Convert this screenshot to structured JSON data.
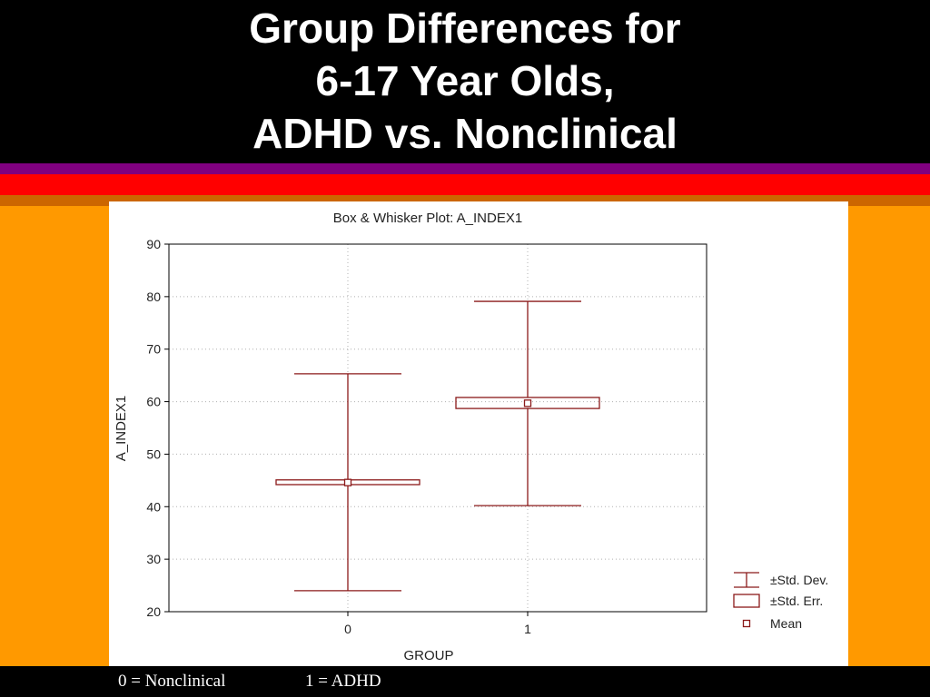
{
  "slide": {
    "title_lines": [
      "Group Differences for",
      "6-17 Year Olds,",
      "ADHD vs. Nonclinical"
    ],
    "footnotes": [
      "0 = Nonclinical",
      "1 = ADHD"
    ]
  },
  "colors": {
    "background": "#ff9900",
    "band": "#000000",
    "stripes": [
      "#800080",
      "#ff0000",
      "#ff0000",
      "#cc6600"
    ],
    "plot_stroke": "#8b1a1a",
    "grid": "#b0b0b0"
  },
  "chart_data": {
    "type": "box",
    "title": "Box & Whisker Plot: A_INDEX1",
    "xlabel": "GROUP",
    "ylabel": "A_INDEX1",
    "ylim": [
      20,
      90
    ],
    "yticks": [
      20,
      30,
      40,
      50,
      60,
      70,
      80,
      90
    ],
    "grid": true,
    "groups": [
      {
        "category": "0",
        "mean": 44.6,
        "se_low": 44.2,
        "se_high": 45.1,
        "sd_low": 24.0,
        "sd_high": 65.3
      },
      {
        "category": "1",
        "mean": 59.7,
        "se_low": 58.7,
        "se_high": 60.8,
        "sd_low": 40.2,
        "sd_high": 79.1
      }
    ],
    "legend": {
      "position": "bottom-right",
      "items": [
        "±Std. Dev.",
        "±Std. Err.",
        "Mean"
      ]
    }
  }
}
